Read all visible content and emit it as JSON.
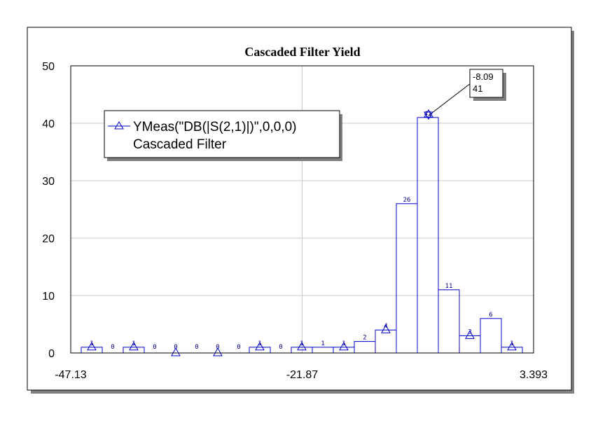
{
  "chart_data": {
    "type": "bar",
    "title": "Cascaded Filter Yield",
    "ylim": [
      0,
      50
    ],
    "yticks": [
      0,
      10,
      20,
      30,
      40,
      50
    ],
    "xticks": [
      "-47.13",
      "-21.87",
      "3.393"
    ],
    "grid": true,
    "values": [
      1,
      0,
      1,
      0,
      0,
      0,
      0,
      0,
      1,
      0,
      1,
      1,
      1,
      2,
      4,
      26,
      41,
      11,
      3,
      6,
      1
    ],
    "triangle_markers": [
      0,
      2,
      4,
      6,
      8,
      10,
      12,
      14,
      16,
      18,
      20
    ],
    "series": [
      {
        "name_line1": "YMeas(\"DB(|S(2,1)|)\",0,0,0)",
        "name_line2": "Cascaded Filter"
      }
    ],
    "marker_annotation": {
      "line1": "-8.09",
      "line2": "41",
      "bin": 16
    },
    "legend_position": "upper-left",
    "colors": {
      "series": "#0000cd",
      "grid": "#c8c8c8"
    }
  }
}
